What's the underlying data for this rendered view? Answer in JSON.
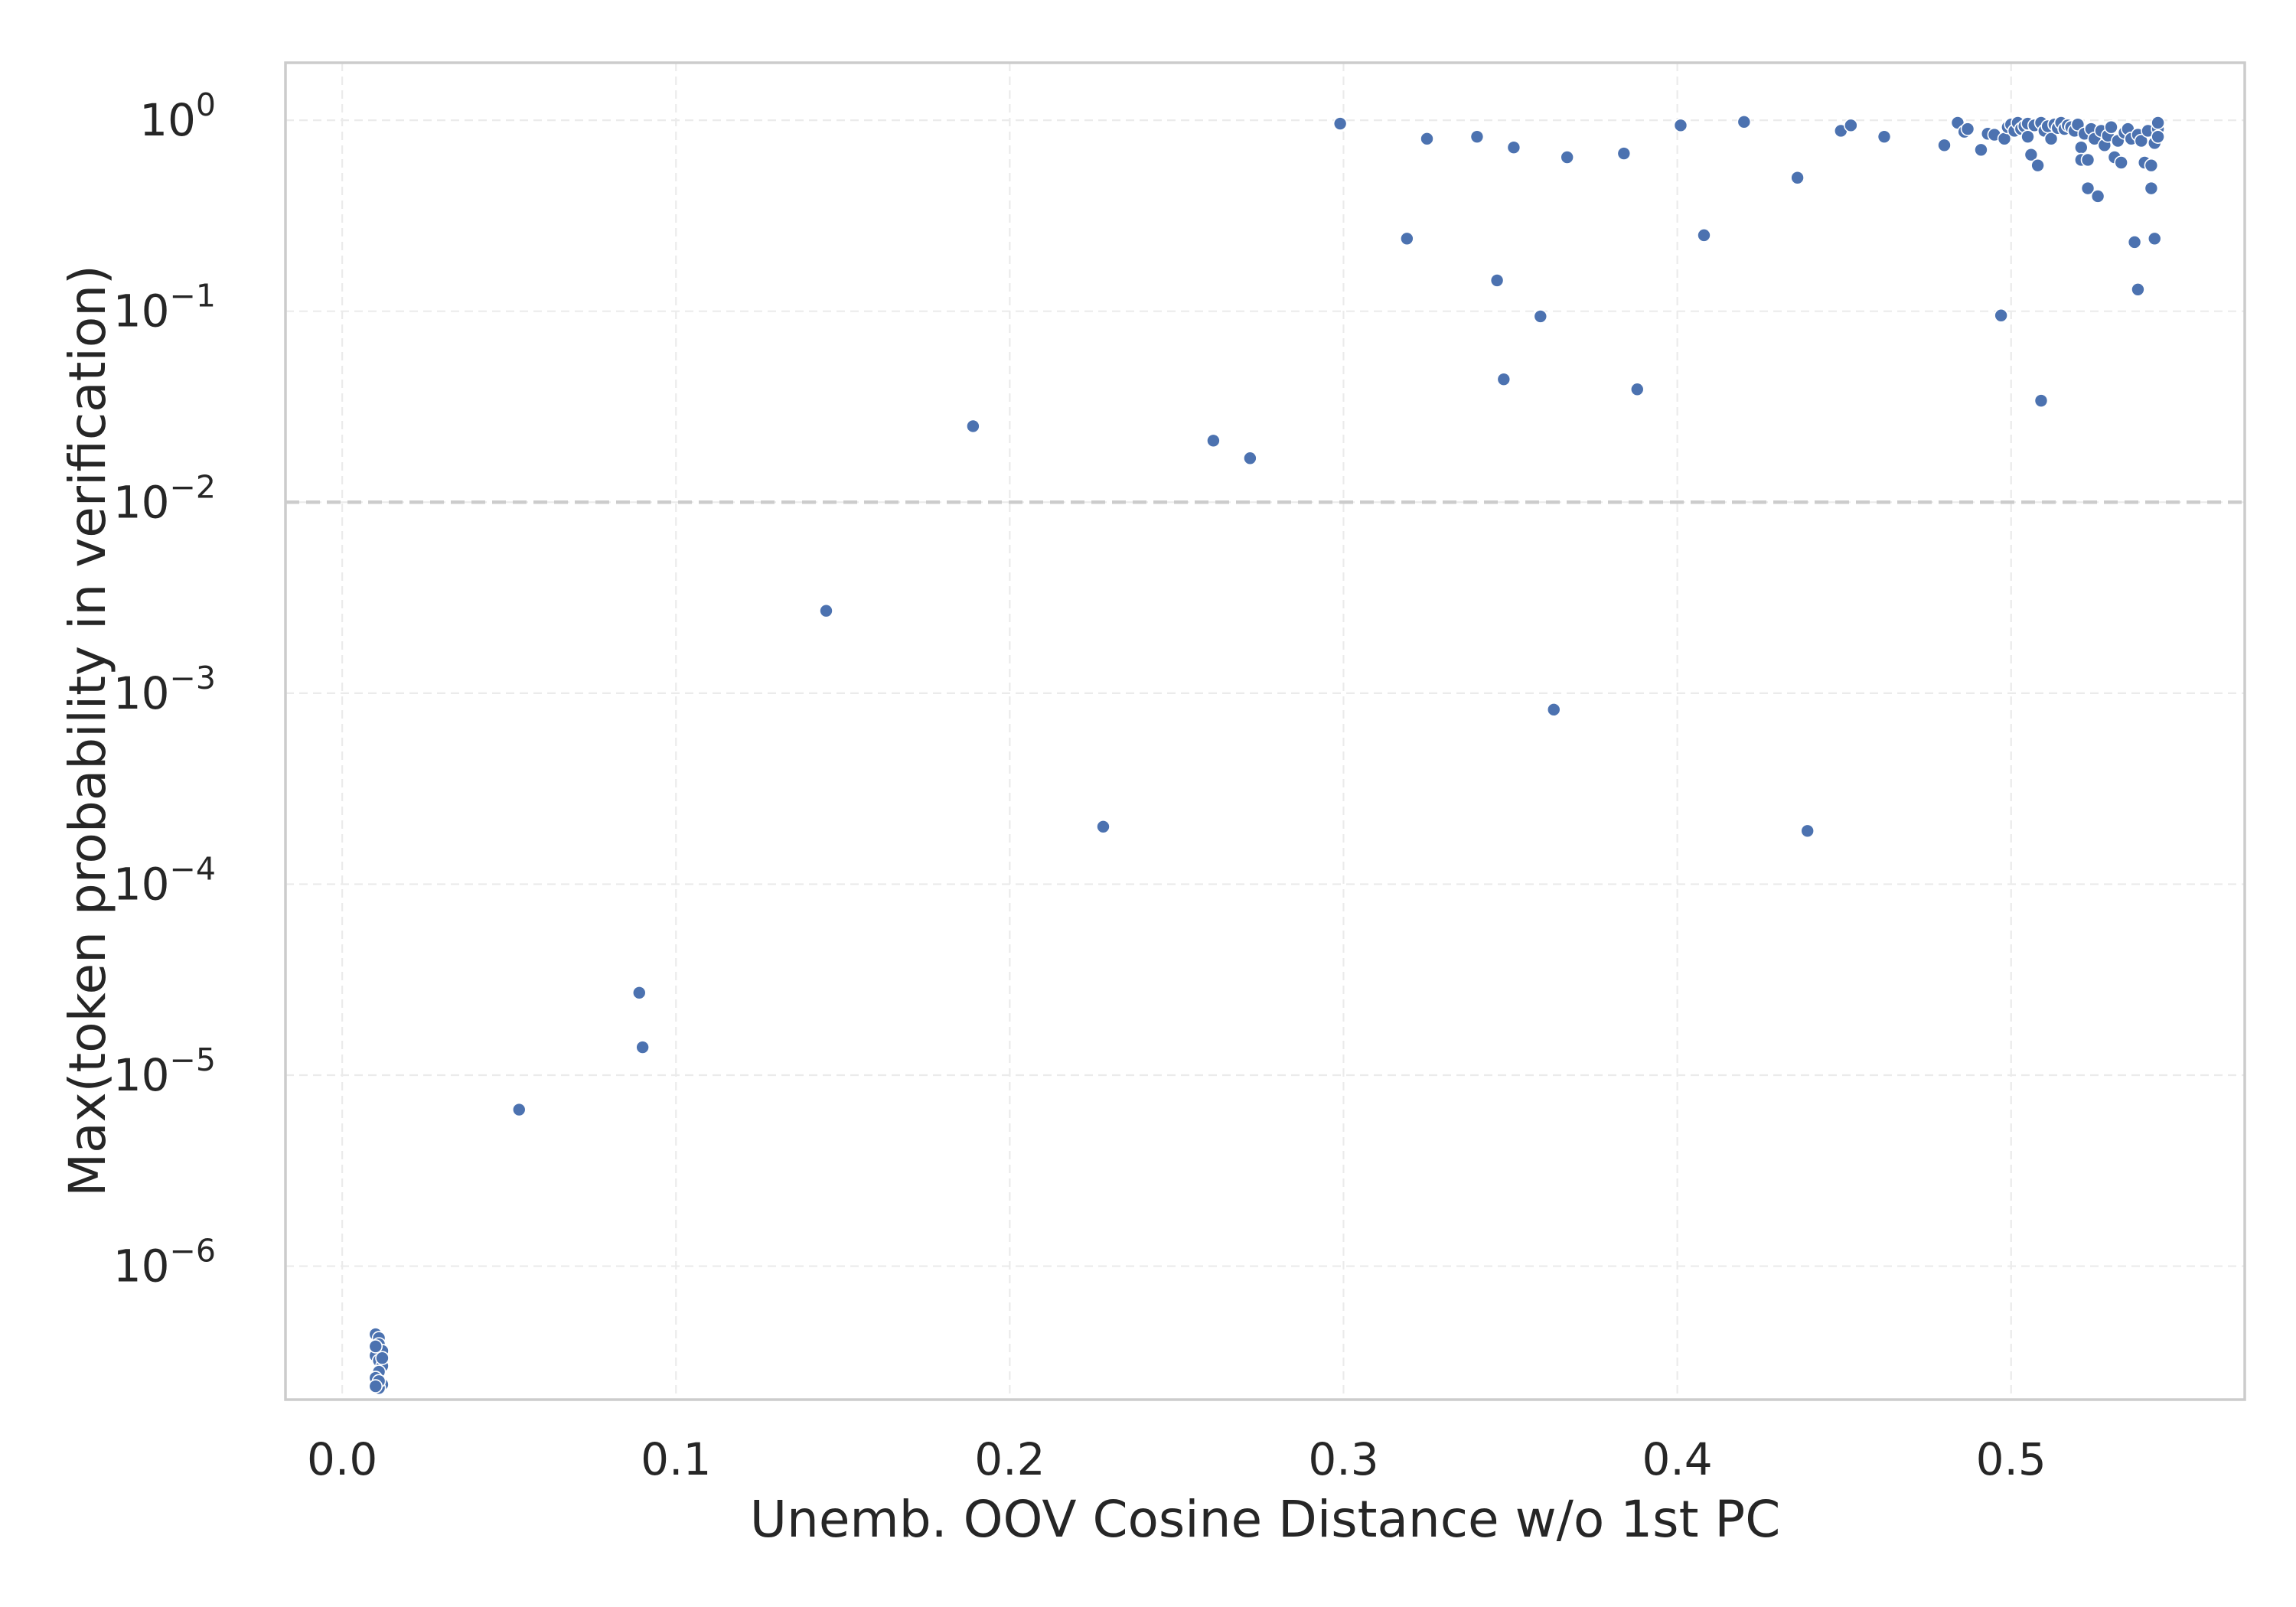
{
  "chart_data": {
    "type": "scatter",
    "xlabel": "Unemb. OOV Cosine Distance w/o 1st PC",
    "ylabel": "Max(token probability in verification)",
    "x_scale": "linear",
    "y_scale": "log",
    "xlim": [
      -0.017,
      0.57
    ],
    "ylim": [
      2e-07,
      2
    ],
    "x_ticks": [
      0.0,
      0.1,
      0.2,
      0.3,
      0.4,
      0.5
    ],
    "x_tick_labels": [
      "0.0",
      "0.1",
      "0.2",
      "0.3",
      "0.4",
      "0.5"
    ],
    "y_ticks": [
      1e-06,
      1e-05,
      0.0001,
      0.001,
      0.01,
      0.1,
      1
    ],
    "y_tick_labels": [
      {
        "base": "10",
        "exp": "−6"
      },
      {
        "base": "10",
        "exp": "−5"
      },
      {
        "base": "10",
        "exp": "−4"
      },
      {
        "base": "10",
        "exp": "−3"
      },
      {
        "base": "10",
        "exp": "−2"
      },
      {
        "base": "10",
        "exp": "−1"
      },
      {
        "base": "10",
        "exp": "0"
      }
    ],
    "grid": true,
    "reference_line": {
      "orientation": "horizontal",
      "y": 0.01,
      "style": "dashed"
    },
    "marker_color": "#4c72b0",
    "points": [
      [
        0.01,
        4.4e-07
      ],
      [
        0.011,
        4.2e-07
      ],
      [
        0.011,
        3.9e-07
      ],
      [
        0.012,
        3.6e-07
      ],
      [
        0.01,
        3.4e-07
      ],
      [
        0.011,
        3.2e-07
      ],
      [
        0.012,
        3e-07
      ],
      [
        0.011,
        2.8e-07
      ],
      [
        0.01,
        2.6e-07
      ],
      [
        0.012,
        2.4e-07
      ],
      [
        0.011,
        2.3e-07
      ],
      [
        0.01,
        3.8e-07
      ],
      [
        0.012,
        3.3e-07
      ],
      [
        0.011,
        2.5e-07
      ],
      [
        0.01,
        2.35e-07
      ],
      [
        0.053,
        6.6e-06
      ],
      [
        0.089,
        2.7e-05
      ],
      [
        0.09,
        1.4e-05
      ],
      [
        0.145,
        0.0027
      ],
      [
        0.189,
        0.025
      ],
      [
        0.228,
        0.0002
      ],
      [
        0.261,
        0.021
      ],
      [
        0.272,
        0.017
      ],
      [
        0.299,
        0.96
      ],
      [
        0.319,
        0.24
      ],
      [
        0.325,
        0.8
      ],
      [
        0.34,
        0.82
      ],
      [
        0.346,
        0.145
      ],
      [
        0.348,
        0.044
      ],
      [
        0.351,
        0.72
      ],
      [
        0.359,
        0.094
      ],
      [
        0.363,
        0.00082
      ],
      [
        0.367,
        0.64
      ],
      [
        0.384,
        0.67
      ],
      [
        0.388,
        0.039
      ],
      [
        0.401,
        0.94
      ],
      [
        0.408,
        0.25
      ],
      [
        0.42,
        0.98
      ],
      [
        0.436,
        0.5
      ],
      [
        0.439,
        0.00019
      ],
      [
        0.449,
        0.88
      ],
      [
        0.452,
        0.94
      ],
      [
        0.462,
        0.82
      ],
      [
        0.48,
        0.74
      ],
      [
        0.484,
        0.97
      ],
      [
        0.486,
        0.87
      ],
      [
        0.487,
        0.9
      ],
      [
        0.491,
        0.7
      ],
      [
        0.493,
        0.85
      ],
      [
        0.495,
        0.84
      ],
      [
        0.497,
        0.095
      ],
      [
        0.498,
        0.8
      ],
      [
        0.499,
        0.92
      ],
      [
        0.5,
        0.95
      ],
      [
        0.501,
        0.88
      ],
      [
        0.502,
        0.97
      ],
      [
        0.503,
        0.9
      ],
      [
        0.504,
        0.93
      ],
      [
        0.505,
        0.96
      ],
      [
        0.505,
        0.82
      ],
      [
        0.506,
        0.66
      ],
      [
        0.507,
        0.94
      ],
      [
        0.508,
        0.58
      ],
      [
        0.509,
        0.034
      ],
      [
        0.509,
        0.97
      ],
      [
        0.51,
        0.88
      ],
      [
        0.511,
        0.93
      ],
      [
        0.512,
        0.8
      ],
      [
        0.513,
        0.95
      ],
      [
        0.514,
        0.91
      ],
      [
        0.515,
        0.97
      ],
      [
        0.516,
        0.9
      ],
      [
        0.517,
        0.94
      ],
      [
        0.518,
        0.92
      ],
      [
        0.519,
        0.88
      ],
      [
        0.52,
        0.95
      ],
      [
        0.521,
        0.72
      ],
      [
        0.521,
        0.62
      ],
      [
        0.522,
        0.85
      ],
      [
        0.523,
        0.62
      ],
      [
        0.523,
        0.44
      ],
      [
        0.524,
        0.9
      ],
      [
        0.525,
        0.8
      ],
      [
        0.526,
        0.4
      ],
      [
        0.527,
        0.88
      ],
      [
        0.528,
        0.74
      ],
      [
        0.529,
        0.83
      ],
      [
        0.53,
        0.92
      ],
      [
        0.531,
        0.64
      ],
      [
        0.532,
        0.78
      ],
      [
        0.533,
        0.6
      ],
      [
        0.534,
        0.86
      ],
      [
        0.535,
        0.9
      ],
      [
        0.536,
        0.8
      ],
      [
        0.537,
        0.23
      ],
      [
        0.538,
        0.13
      ],
      [
        0.538,
        0.84
      ],
      [
        0.539,
        0.78
      ],
      [
        0.54,
        0.6
      ],
      [
        0.541,
        0.88
      ],
      [
        0.542,
        0.44
      ],
      [
        0.542,
        0.58
      ],
      [
        0.543,
        0.24
      ],
      [
        0.543,
        0.76
      ],
      [
        0.544,
        0.9
      ],
      [
        0.544,
        0.97
      ],
      [
        0.544,
        0.82
      ]
    ]
  }
}
